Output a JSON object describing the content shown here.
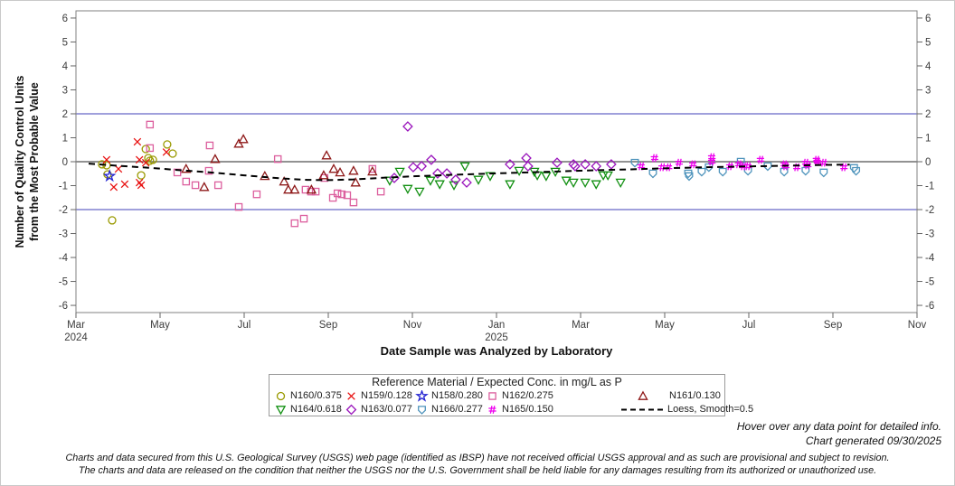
{
  "figure": {
    "x_axis_title": "Date Sample was Analyzed by Laboratory",
    "y_axis_title_line1": "Number of Quality Control Units",
    "y_axis_title_line2": "from the Most Probable Value"
  },
  "legend": {
    "title": "Reference Material / Expected Conc. in mg/L as P"
  },
  "footer": {
    "hover_note": "Hover over any data point for detailed info.",
    "generated_note": "Chart generated 09/30/2025",
    "disclaimer_line1": "Charts and data secured from this U.S. Geological Survey (USGS) web page (identified as IBSP) have not received official USGS approval and as such are provisional and subject to revision.",
    "disclaimer_line2": "The charts and data are released on the condition that neither the USGS nor the U.S. Government shall be held liable for any damages resulting from its authorized or unauthorized use."
  },
  "chart_data": {
    "type": "scatter",
    "title": "",
    "xlabel": "Date Sample was Analyzed by Laboratory",
    "ylabel": "Number of Quality Control Units from the Most Probable Value",
    "x_unit": "months since 2024-03-01",
    "xlim": [
      0,
      20
    ],
    "ylim": [
      -6.3,
      6.3
    ],
    "grid": false,
    "legend_position": "bottom",
    "x_axis": {
      "ticks": [
        {
          "m": 0,
          "label": "Mar",
          "year": "2024"
        },
        {
          "m": 2,
          "label": "May"
        },
        {
          "m": 4,
          "label": "Jul"
        },
        {
          "m": 6,
          "label": "Sep"
        },
        {
          "m": 8,
          "label": "Nov"
        },
        {
          "m": 10,
          "label": "Jan",
          "year": "2025"
        },
        {
          "m": 12,
          "label": "Mar"
        },
        {
          "m": 14,
          "label": "May"
        },
        {
          "m": 16,
          "label": "Jul"
        },
        {
          "m": 18,
          "label": "Sep"
        },
        {
          "m": 20,
          "label": "Nov"
        }
      ]
    },
    "y_axis": {
      "ticks": [
        6,
        5,
        4,
        3,
        2,
        1,
        0,
        -1,
        -2,
        -3,
        -4,
        -5,
        -6
      ]
    },
    "reference_lines": [
      {
        "y": 2,
        "color": "#6868c8"
      },
      {
        "y": 0,
        "color": "#6e6e6e"
      },
      {
        "y": -2,
        "color": "#6868c8"
      }
    ],
    "series": [
      {
        "id": "N160",
        "label": "N160/0.375",
        "marker": "circle",
        "color": "#9a9a00",
        "points": [
          [
            0.62,
            -0.11
          ],
          [
            0.73,
            -0.15
          ],
          [
            0.75,
            -0.53
          ],
          [
            0.86,
            -2.45
          ],
          [
            1.55,
            -0.57
          ],
          [
            1.66,
            0.53
          ],
          [
            1.72,
            0.15
          ],
          [
            1.76,
            0.04
          ],
          [
            1.83,
            0.08
          ],
          [
            2.17,
            0.72
          ],
          [
            2.3,
            0.34
          ]
        ]
      },
      {
        "id": "N159",
        "label": "N159/0.128",
        "marker": "x",
        "color": "#e81010",
        "points": [
          [
            0.73,
            0.08
          ],
          [
            0.9,
            -1.06
          ],
          [
            1.01,
            -0.3
          ],
          [
            1.16,
            -0.94
          ],
          [
            1.46,
            0.83
          ],
          [
            1.51,
            0.08
          ],
          [
            1.51,
            -0.87
          ],
          [
            1.55,
            -0.98
          ],
          [
            1.66,
            -0.04
          ],
          [
            2.15,
            0.4
          ]
        ]
      },
      {
        "id": "N158",
        "label": "N158/0.280",
        "marker": "star",
        "color": "#2323d2",
        "points": [
          [
            0.8,
            -0.6
          ]
        ]
      },
      {
        "id": "N162",
        "label": "N162/0.275",
        "marker": "square",
        "color": "#dc5f9e",
        "points": [
          [
            1.76,
            1.55
          ],
          [
            1.76,
            0.57
          ],
          [
            2.41,
            -0.45
          ],
          [
            2.62,
            -0.83
          ],
          [
            2.84,
            -0.98
          ],
          [
            3.16,
            -0.38
          ],
          [
            3.18,
            0.68
          ],
          [
            3.38,
            -0.98
          ],
          [
            3.87,
            -1.89
          ],
          [
            4.3,
            -1.36
          ],
          [
            4.8,
            0.11
          ],
          [
            5.2,
            -2.57
          ],
          [
            5.42,
            -2.38
          ],
          [
            5.46,
            -1.17
          ],
          [
            5.59,
            -1.25
          ],
          [
            5.7,
            -1.25
          ],
          [
            5.91,
            -0.68
          ],
          [
            6.11,
            -1.51
          ],
          [
            6.22,
            -1.32
          ],
          [
            6.32,
            -1.36
          ],
          [
            6.45,
            -1.4
          ],
          [
            6.6,
            -1.7
          ],
          [
            7.05,
            -0.3
          ],
          [
            7.25,
            -1.25
          ]
        ]
      },
      {
        "id": "N161",
        "label": "N161/0.130",
        "marker": "triangle-up",
        "color": "#8f1a1a",
        "points": [
          [
            2.62,
            -0.3
          ],
          [
            3.05,
            -1.06
          ],
          [
            3.31,
            0.11
          ],
          [
            3.87,
            0.75
          ],
          [
            3.98,
            0.94
          ],
          [
            4.49,
            -0.6
          ],
          [
            4.95,
            -0.83
          ],
          [
            5.05,
            -1.17
          ],
          [
            5.2,
            -1.17
          ],
          [
            5.6,
            -1.17
          ],
          [
            5.89,
            -0.57
          ],
          [
            5.96,
            0.26
          ],
          [
            6.13,
            -0.3
          ],
          [
            6.28,
            -0.45
          ],
          [
            6.6,
            -0.38
          ],
          [
            6.65,
            -0.87
          ],
          [
            7.05,
            -0.41
          ]
        ]
      },
      {
        "id": "N164",
        "label": "N164/0.618",
        "marker": "triangle-down",
        "color": "#129012",
        "points": [
          [
            7.46,
            -0.79
          ],
          [
            7.7,
            -0.42
          ],
          [
            7.89,
            -1.13
          ],
          [
            8.17,
            -1.25
          ],
          [
            8.43,
            -0.79
          ],
          [
            8.65,
            -0.94
          ],
          [
            8.99,
            -0.98
          ],
          [
            9.25,
            -0.19
          ],
          [
            9.57,
            -0.75
          ],
          [
            9.85,
            -0.6
          ],
          [
            10.32,
            -0.94
          ],
          [
            10.54,
            -0.38
          ],
          [
            10.9,
            -0.42
          ],
          [
            10.97,
            -0.57
          ],
          [
            11.18,
            -0.6
          ],
          [
            11.4,
            -0.42
          ],
          [
            11.66,
            -0.79
          ],
          [
            11.83,
            -0.87
          ],
          [
            12.11,
            -0.87
          ],
          [
            12.37,
            -0.94
          ],
          [
            12.54,
            -0.57
          ],
          [
            12.65,
            -0.57
          ],
          [
            12.95,
            -0.87
          ]
        ]
      },
      {
        "id": "N163",
        "label": "N163/0.077",
        "marker": "diamond",
        "color": "#9913bb",
        "points": [
          [
            7.57,
            -0.68
          ],
          [
            7.89,
            1.47
          ],
          [
            8.02,
            -0.23
          ],
          [
            8.22,
            -0.19
          ],
          [
            8.45,
            0.08
          ],
          [
            8.6,
            -0.49
          ],
          [
            8.82,
            -0.49
          ],
          [
            9.03,
            -0.75
          ],
          [
            9.29,
            -0.87
          ],
          [
            10.32,
            -0.11
          ],
          [
            10.71,
            0.15
          ],
          [
            10.75,
            -0.19
          ],
          [
            11.44,
            -0.04
          ],
          [
            11.83,
            -0.11
          ],
          [
            11.87,
            -0.19
          ],
          [
            12.11,
            -0.11
          ],
          [
            12.37,
            -0.19
          ],
          [
            12.73,
            -0.11
          ]
        ]
      },
      {
        "id": "N166",
        "label": "N166/0.277",
        "marker": "shield",
        "color": "#4f94bc",
        "points": [
          [
            13.29,
            -0.04
          ],
          [
            13.72,
            -0.49
          ],
          [
            14.56,
            -0.49
          ],
          [
            14.58,
            -0.6
          ],
          [
            14.88,
            -0.42
          ],
          [
            15.05,
            -0.23
          ],
          [
            15.38,
            -0.42
          ],
          [
            15.81,
            0.0
          ],
          [
            15.98,
            -0.38
          ],
          [
            16.45,
            -0.19
          ],
          [
            16.84,
            -0.42
          ],
          [
            17.35,
            -0.38
          ],
          [
            17.78,
            -0.45
          ],
          [
            18.5,
            -0.26
          ],
          [
            18.55,
            -0.38
          ]
        ]
      },
      {
        "id": "N165",
        "label": "N165/0.150",
        "marker": "hash",
        "color": "#ee00ee",
        "points": [
          [
            13.44,
            -0.19
          ],
          [
            13.76,
            0.15
          ],
          [
            13.94,
            -0.23
          ],
          [
            14.09,
            -0.23
          ],
          [
            14.34,
            -0.04
          ],
          [
            14.67,
            -0.11
          ],
          [
            15.12,
            0.19
          ],
          [
            15.12,
            0.0
          ],
          [
            15.55,
            -0.19
          ],
          [
            15.76,
            -0.11
          ],
          [
            15.87,
            -0.19
          ],
          [
            15.98,
            -0.19
          ],
          [
            16.28,
            0.08
          ],
          [
            16.84,
            -0.11
          ],
          [
            16.88,
            -0.19
          ],
          [
            17.14,
            -0.23
          ],
          [
            17.35,
            -0.04
          ],
          [
            17.4,
            -0.15
          ],
          [
            17.61,
            0.08
          ],
          [
            17.63,
            0.0
          ],
          [
            17.78,
            -0.04
          ],
          [
            18.26,
            -0.23
          ]
        ]
      },
      {
        "id": "loess",
        "label": "Loess, Smooth=0.5",
        "marker": "dashed-line",
        "color": "#000000",
        "type": "line",
        "points": [
          [
            0.3,
            -0.08
          ],
          [
            1.0,
            -0.17
          ],
          [
            1.7,
            -0.25
          ],
          [
            2.5,
            -0.36
          ],
          [
            3.2,
            -0.45
          ],
          [
            4.0,
            -0.57
          ],
          [
            4.9,
            -0.7
          ],
          [
            5.5,
            -0.76
          ],
          [
            6.0,
            -0.77
          ],
          [
            6.6,
            -0.74
          ],
          [
            7.3,
            -0.67
          ],
          [
            8.0,
            -0.61
          ],
          [
            8.8,
            -0.56
          ],
          [
            9.6,
            -0.51
          ],
          [
            10.5,
            -0.46
          ],
          [
            11.4,
            -0.41
          ],
          [
            12.3,
            -0.36
          ],
          [
            13.2,
            -0.32
          ],
          [
            14.1,
            -0.27
          ],
          [
            15.0,
            -0.23
          ],
          [
            15.9,
            -0.2
          ],
          [
            16.8,
            -0.17
          ],
          [
            17.6,
            -0.14
          ],
          [
            18.4,
            -0.12
          ]
        ]
      }
    ]
  }
}
